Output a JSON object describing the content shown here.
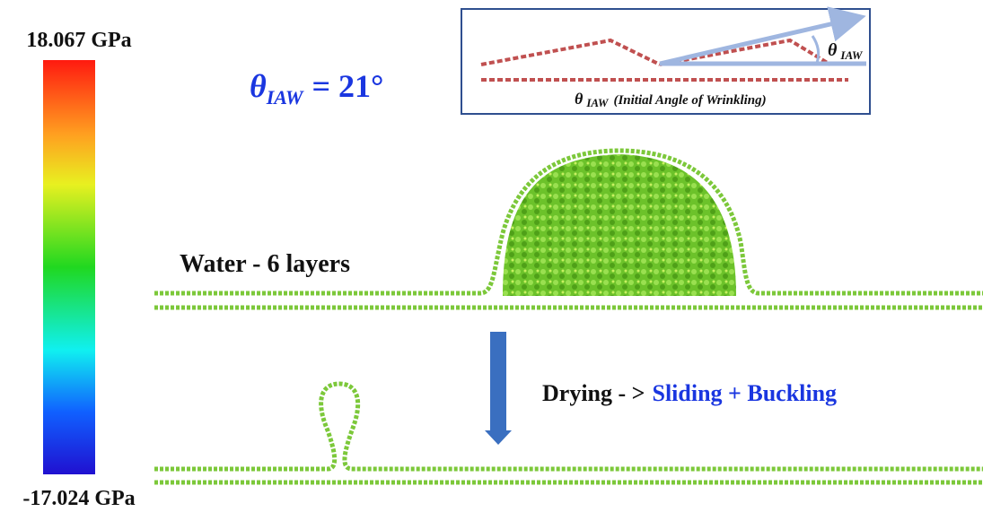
{
  "colorbar": {
    "max_label": "18.067 GPa",
    "min_label": "-17.024 GPa"
  },
  "angle": {
    "symbol": "θ",
    "subscript": "IAW",
    "value_text": "= 21°"
  },
  "inset": {
    "angle_symbol": "θ",
    "angle_subscript": "IAW",
    "caption_symbol": "θ",
    "caption_subscript": "IAW",
    "caption_text": "(Initial Angle of Wrinkling)"
  },
  "labels": {
    "water": "Water - 6 layers",
    "drying": "Drying - >",
    "result": "Sliding + Buckling"
  }
}
